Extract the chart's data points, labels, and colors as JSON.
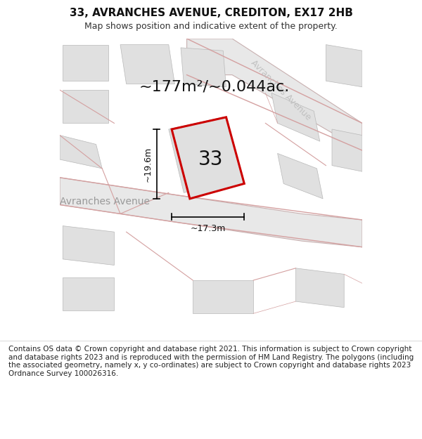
{
  "title": "33, AVRANCHES AVENUE, CREDITON, EX17 2HB",
  "subtitle": "Map shows position and indicative extent of the property.",
  "area_text": "~177m²/~0.044ac.",
  "label_33": "33",
  "dim_vertical": "~19.6m",
  "dim_horizontal": "~17.3m",
  "street_label_left": "Avranches Avenue",
  "street_label_right": "Avranches Avenue",
  "footer": "Contains OS data © Crown copyright and database right 2021. This information is subject to Crown copyright and database rights 2023 and is reproduced with the permission of HM Land Registry. The polygons (including the associated geometry, namely x, y co-ordinates) are subject to Crown copyright and database rights 2023 Ordnance Survey 100026316.",
  "bg_color": "#ffffff",
  "road_stroke": "#d4a0a0",
  "building_fill": "#e0e0e0",
  "plot_stroke": "#cc0000",
  "title_fontsize": 11,
  "subtitle_fontsize": 9,
  "area_fontsize": 16,
  "label_fontsize": 20,
  "dim_fontsize": 9,
  "street_fontsize": 10,
  "footer_fontsize": 7.5
}
